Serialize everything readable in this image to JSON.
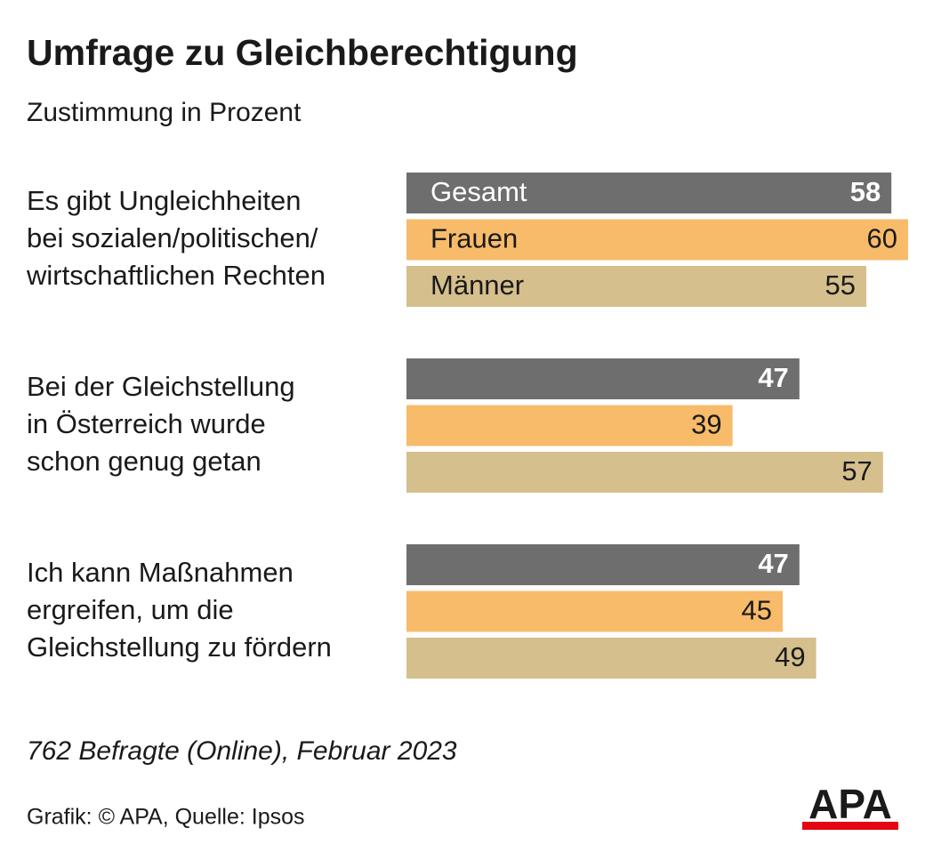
{
  "chart_data": {
    "type": "barh",
    "title": "Umfrage zu Gleichberechtigung",
    "subtitle": "Zustimmung in Prozent",
    "categories": [
      [
        "Es gibt Ungleichheiten",
        "bei sozialen/politischen/",
        "wirtschaftlichen Rechten"
      ],
      [
        "Bei der Gleichstellung",
        "in Österreich wurde",
        "schon genug getan"
      ],
      [
        "Ich kann Maßnahmen",
        "ergreifen, um die",
        "Gleichstellung zu fördern"
      ]
    ],
    "series": [
      {
        "name": "Gesamt",
        "color": "#6e6e6e",
        "values": [
          58,
          47,
          47
        ]
      },
      {
        "name": "Frauen",
        "color": "#f7bb6a",
        "values": [
          60,
          39,
          45
        ]
      },
      {
        "name": "Männer",
        "color": "#d5bf8c",
        "values": [
          55,
          57,
          49
        ]
      }
    ],
    "xlim": [
      0,
      60
    ],
    "note": "762 Befragte (Online), Februar 2023",
    "source": "Grafik: © APA, Quelle: Ipsos",
    "logo": "APA"
  }
}
